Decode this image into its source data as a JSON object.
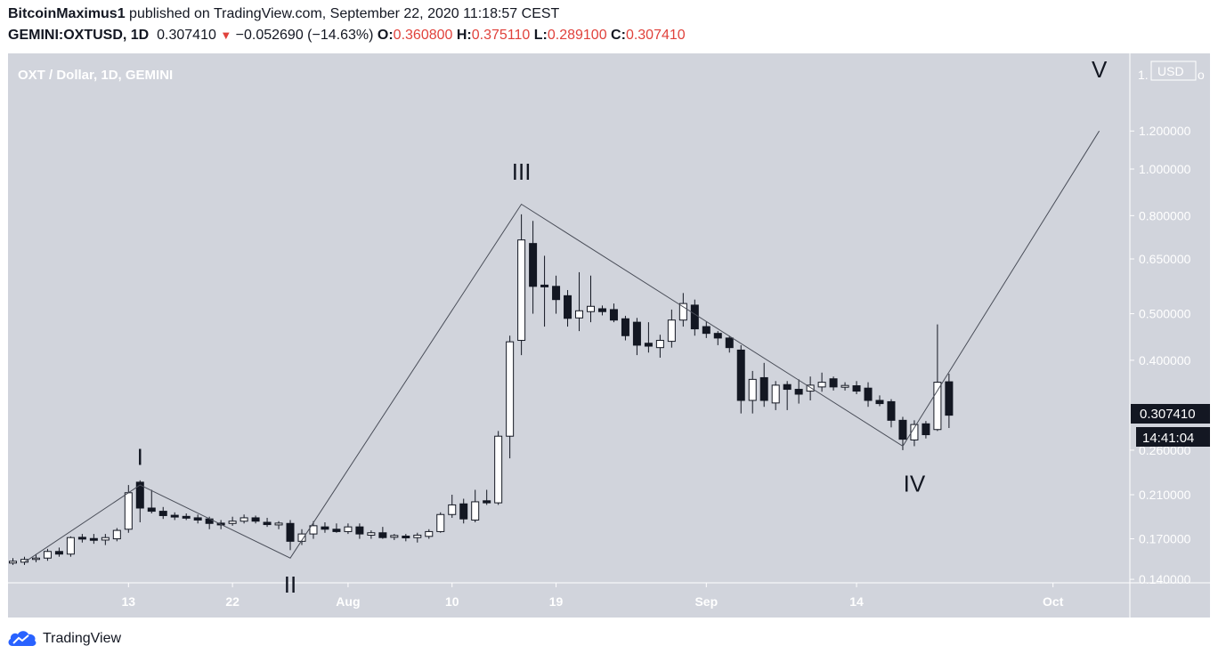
{
  "header": {
    "author": "BitcoinMaximus1",
    "published_text": "published on TradingView.com, September 22, 2020 11:18:57 CEST",
    "symbol_tf": "GEMINI:OXTUSD, 1D",
    "last": "0.307410",
    "change": "−0.052690 (−14.63%)",
    "o_label": "O:",
    "o": "0.360800",
    "h_label": "H:",
    "h": "0.375110",
    "l_label": "L:",
    "l": "0.289100",
    "c_label": "C:",
    "c": "0.307410"
  },
  "chart_title": "OXT / Dollar, 1D, GEMINI",
  "axis": {
    "currency": "USD",
    "top_partial": "1.",
    "last_price_tag": "0.307410",
    "countdown_tag": "14:41:04"
  },
  "footer": {
    "brand": "TradingView"
  },
  "colors": {
    "background": "#d1d4dc",
    "bull_fill": "#ffffff",
    "bear_fill": "#131722",
    "line": "#4a4e59",
    "price_tag": "#131722",
    "change_negative": "#e0423c"
  },
  "chart_data": {
    "type": "candlestick",
    "title": "OXT / Dollar, 1D, GEMINI",
    "y_scale": "log",
    "ylim": [
      0.135,
      1.5
    ],
    "y_ticks": [
      {
        "value": 1.2,
        "label": "1.200000"
      },
      {
        "value": 1.0,
        "label": "1.000000"
      },
      {
        "value": 0.8,
        "label": "0.800000"
      },
      {
        "value": 0.65,
        "label": "0.650000"
      },
      {
        "value": 0.5,
        "label": "0.500000"
      },
      {
        "value": 0.4,
        "label": "0.400000"
      },
      {
        "value": 0.26,
        "label": "0.260000"
      },
      {
        "value": 0.21,
        "label": "0.210000"
      },
      {
        "value": 0.17,
        "label": "0.170000"
      },
      {
        "value": 0.14,
        "label": "0.140000"
      }
    ],
    "x_ticks": [
      {
        "date": "2020-07-13",
        "label": "13"
      },
      {
        "date": "2020-07-22",
        "label": "22"
      },
      {
        "date": "2020-08-01",
        "label": "Aug"
      },
      {
        "date": "2020-08-10",
        "label": "10"
      },
      {
        "date": "2020-08-19",
        "label": "19"
      },
      {
        "date": "2020-09-01",
        "label": "Sep"
      },
      {
        "date": "2020-09-14",
        "label": "14"
      },
      {
        "date": "2020-10-01",
        "label": "Oct"
      }
    ],
    "x_range": [
      "2020-07-03",
      "2020-10-07"
    ],
    "candles": [
      {
        "date": "2020-07-03",
        "o": 0.152,
        "h": 0.155,
        "l": 0.15,
        "c": 0.152
      },
      {
        "date": "2020-07-04",
        "o": 0.152,
        "h": 0.156,
        "l": 0.15,
        "c": 0.154
      },
      {
        "date": "2020-07-05",
        "o": 0.154,
        "h": 0.158,
        "l": 0.152,
        "c": 0.155
      },
      {
        "date": "2020-07-06",
        "o": 0.155,
        "h": 0.162,
        "l": 0.153,
        "c": 0.16
      },
      {
        "date": "2020-07-07",
        "o": 0.16,
        "h": 0.163,
        "l": 0.156,
        "c": 0.158
      },
      {
        "date": "2020-07-08",
        "o": 0.158,
        "h": 0.172,
        "l": 0.156,
        "c": 0.171
      },
      {
        "date": "2020-07-09",
        "o": 0.171,
        "h": 0.174,
        "l": 0.167,
        "c": 0.17
      },
      {
        "date": "2020-07-10",
        "o": 0.17,
        "h": 0.174,
        "l": 0.166,
        "c": 0.169
      },
      {
        "date": "2020-07-11",
        "o": 0.169,
        "h": 0.174,
        "l": 0.165,
        "c": 0.171
      },
      {
        "date": "2020-07-12",
        "o": 0.17,
        "h": 0.179,
        "l": 0.168,
        "c": 0.177
      },
      {
        "date": "2020-07-13",
        "o": 0.178,
        "h": 0.22,
        "l": 0.175,
        "c": 0.212
      },
      {
        "date": "2020-07-14",
        "o": 0.223,
        "h": 0.225,
        "l": 0.184,
        "c": 0.197
      },
      {
        "date": "2020-07-15",
        "o": 0.197,
        "h": 0.215,
        "l": 0.192,
        "c": 0.194
      },
      {
        "date": "2020-07-16",
        "o": 0.194,
        "h": 0.198,
        "l": 0.187,
        "c": 0.19
      },
      {
        "date": "2020-07-17",
        "o": 0.19,
        "h": 0.193,
        "l": 0.186,
        "c": 0.189
      },
      {
        "date": "2020-07-18",
        "o": 0.189,
        "h": 0.192,
        "l": 0.186,
        "c": 0.188
      },
      {
        "date": "2020-07-19",
        "o": 0.188,
        "h": 0.191,
        "l": 0.183,
        "c": 0.186
      },
      {
        "date": "2020-07-20",
        "o": 0.187,
        "h": 0.189,
        "l": 0.178,
        "c": 0.183
      },
      {
        "date": "2020-07-21",
        "o": 0.183,
        "h": 0.186,
        "l": 0.178,
        "c": 0.182
      },
      {
        "date": "2020-07-22",
        "o": 0.183,
        "h": 0.189,
        "l": 0.181,
        "c": 0.185
      },
      {
        "date": "2020-07-23",
        "o": 0.185,
        "h": 0.191,
        "l": 0.183,
        "c": 0.188
      },
      {
        "date": "2020-07-24",
        "o": 0.188,
        "h": 0.19,
        "l": 0.183,
        "c": 0.185
      },
      {
        "date": "2020-07-25",
        "o": 0.184,
        "h": 0.188,
        "l": 0.18,
        "c": 0.182
      },
      {
        "date": "2020-07-26",
        "o": 0.182,
        "h": 0.185,
        "l": 0.178,
        "c": 0.183
      },
      {
        "date": "2020-07-27",
        "o": 0.183,
        "h": 0.186,
        "l": 0.161,
        "c": 0.168
      },
      {
        "date": "2020-07-28",
        "o": 0.168,
        "h": 0.178,
        "l": 0.165,
        "c": 0.174
      },
      {
        "date": "2020-07-29",
        "o": 0.174,
        "h": 0.185,
        "l": 0.17,
        "c": 0.181
      },
      {
        "date": "2020-07-30",
        "o": 0.18,
        "h": 0.184,
        "l": 0.175,
        "c": 0.178
      },
      {
        "date": "2020-07-31",
        "o": 0.178,
        "h": 0.183,
        "l": 0.175,
        "c": 0.176
      },
      {
        "date": "2020-08-01",
        "o": 0.176,
        "h": 0.183,
        "l": 0.174,
        "c": 0.18
      },
      {
        "date": "2020-08-02",
        "o": 0.18,
        "h": 0.183,
        "l": 0.17,
        "c": 0.174
      },
      {
        "date": "2020-08-03",
        "o": 0.173,
        "h": 0.177,
        "l": 0.17,
        "c": 0.175
      },
      {
        "date": "2020-08-04",
        "o": 0.175,
        "h": 0.18,
        "l": 0.17,
        "c": 0.171
      },
      {
        "date": "2020-08-05",
        "o": 0.172,
        "h": 0.174,
        "l": 0.169,
        "c": 0.172
      },
      {
        "date": "2020-08-06",
        "o": 0.172,
        "h": 0.174,
        "l": 0.168,
        "c": 0.171
      },
      {
        "date": "2020-08-07",
        "o": 0.171,
        "h": 0.175,
        "l": 0.167,
        "c": 0.173
      },
      {
        "date": "2020-08-08",
        "o": 0.172,
        "h": 0.178,
        "l": 0.17,
        "c": 0.176
      },
      {
        "date": "2020-08-09",
        "o": 0.176,
        "h": 0.193,
        "l": 0.175,
        "c": 0.191
      },
      {
        "date": "2020-08-10",
        "o": 0.191,
        "h": 0.21,
        "l": 0.188,
        "c": 0.2
      },
      {
        "date": "2020-08-11",
        "o": 0.201,
        "h": 0.206,
        "l": 0.183,
        "c": 0.187
      },
      {
        "date": "2020-08-12",
        "o": 0.186,
        "h": 0.215,
        "l": 0.184,
        "c": 0.203
      },
      {
        "date": "2020-08-13",
        "o": 0.204,
        "h": 0.215,
        "l": 0.2,
        "c": 0.202
      },
      {
        "date": "2020-08-14",
        "o": 0.202,
        "h": 0.285,
        "l": 0.2,
        "c": 0.278
      },
      {
        "date": "2020-08-15",
        "o": 0.278,
        "h": 0.45,
        "l": 0.25,
        "c": 0.437
      },
      {
        "date": "2020-08-16",
        "o": 0.44,
        "h": 0.805,
        "l": 0.41,
        "c": 0.712
      },
      {
        "date": "2020-08-17",
        "o": 0.7,
        "h": 0.78,
        "l": 0.5,
        "c": 0.57
      },
      {
        "date": "2020-08-18",
        "o": 0.572,
        "h": 0.66,
        "l": 0.47,
        "c": 0.57
      },
      {
        "date": "2020-08-19",
        "o": 0.57,
        "h": 0.6,
        "l": 0.5,
        "c": 0.535
      },
      {
        "date": "2020-08-20",
        "o": 0.545,
        "h": 0.56,
        "l": 0.47,
        "c": 0.489
      },
      {
        "date": "2020-08-21",
        "o": 0.49,
        "h": 0.61,
        "l": 0.46,
        "c": 0.507
      },
      {
        "date": "2020-08-22",
        "o": 0.505,
        "h": 0.6,
        "l": 0.48,
        "c": 0.518
      },
      {
        "date": "2020-08-23",
        "o": 0.512,
        "h": 0.52,
        "l": 0.496,
        "c": 0.505
      },
      {
        "date": "2020-08-24",
        "o": 0.51,
        "h": 0.525,
        "l": 0.48,
        "c": 0.485
      },
      {
        "date": "2020-08-25",
        "o": 0.488,
        "h": 0.495,
        "l": 0.44,
        "c": 0.45
      },
      {
        "date": "2020-08-26",
        "o": 0.48,
        "h": 0.49,
        "l": 0.41,
        "c": 0.43
      },
      {
        "date": "2020-08-27",
        "o": 0.434,
        "h": 0.48,
        "l": 0.415,
        "c": 0.428
      },
      {
        "date": "2020-08-28",
        "o": 0.425,
        "h": 0.452,
        "l": 0.405,
        "c": 0.44
      },
      {
        "date": "2020-08-29",
        "o": 0.438,
        "h": 0.51,
        "l": 0.425,
        "c": 0.485
      },
      {
        "date": "2020-08-30",
        "o": 0.485,
        "h": 0.552,
        "l": 0.47,
        "c": 0.525
      },
      {
        "date": "2020-08-31",
        "o": 0.521,
        "h": 0.535,
        "l": 0.45,
        "c": 0.465
      },
      {
        "date": "2020-09-01",
        "o": 0.47,
        "h": 0.482,
        "l": 0.445,
        "c": 0.455
      },
      {
        "date": "2020-09-02",
        "o": 0.455,
        "h": 0.46,
        "l": 0.43,
        "c": 0.445
      },
      {
        "date": "2020-09-03",
        "o": 0.445,
        "h": 0.45,
        "l": 0.415,
        "c": 0.425
      },
      {
        "date": "2020-09-04",
        "o": 0.42,
        "h": 0.43,
        "l": 0.31,
        "c": 0.33
      },
      {
        "date": "2020-09-05",
        "o": 0.33,
        "h": 0.38,
        "l": 0.31,
        "c": 0.365
      },
      {
        "date": "2020-09-06",
        "o": 0.368,
        "h": 0.395,
        "l": 0.32,
        "c": 0.33
      },
      {
        "date": "2020-09-07",
        "o": 0.326,
        "h": 0.362,
        "l": 0.315,
        "c": 0.355
      },
      {
        "date": "2020-09-08",
        "o": 0.356,
        "h": 0.362,
        "l": 0.315,
        "c": 0.348
      },
      {
        "date": "2020-09-09",
        "o": 0.348,
        "h": 0.365,
        "l": 0.325,
        "c": 0.34
      },
      {
        "date": "2020-09-10",
        "o": 0.345,
        "h": 0.37,
        "l": 0.33,
        "c": 0.355
      },
      {
        "date": "2020-09-11",
        "o": 0.352,
        "h": 0.377,
        "l": 0.344,
        "c": 0.36
      },
      {
        "date": "2020-09-12",
        "o": 0.366,
        "h": 0.37,
        "l": 0.346,
        "c": 0.352
      },
      {
        "date": "2020-09-13",
        "o": 0.352,
        "h": 0.36,
        "l": 0.346,
        "c": 0.354
      },
      {
        "date": "2020-09-14",
        "o": 0.354,
        "h": 0.362,
        "l": 0.34,
        "c": 0.345
      },
      {
        "date": "2020-09-15",
        "o": 0.35,
        "h": 0.36,
        "l": 0.32,
        "c": 0.33
      },
      {
        "date": "2020-09-16",
        "o": 0.33,
        "h": 0.338,
        "l": 0.321,
        "c": 0.325
      },
      {
        "date": "2020-09-17",
        "o": 0.328,
        "h": 0.332,
        "l": 0.29,
        "c": 0.3
      },
      {
        "date": "2020-09-18",
        "o": 0.3,
        "h": 0.305,
        "l": 0.26,
        "c": 0.274
      },
      {
        "date": "2020-09-19",
        "o": 0.273,
        "h": 0.3,
        "l": 0.265,
        "c": 0.294
      },
      {
        "date": "2020-09-20",
        "o": 0.295,
        "h": 0.299,
        "l": 0.275,
        "c": 0.28
      },
      {
        "date": "2020-09-21",
        "o": 0.287,
        "h": 0.475,
        "l": 0.285,
        "c": 0.36
      },
      {
        "date": "2020-09-22",
        "o": 0.3608,
        "h": 0.37511,
        "l": 0.2891,
        "c": 0.30741
      }
    ],
    "wave_path": [
      {
        "date": "2020-07-04",
        "value": 0.152
      },
      {
        "date": "2020-07-14",
        "value": 0.22
      },
      {
        "date": "2020-07-27",
        "value": 0.155
      },
      {
        "date": "2020-08-16",
        "value": 0.845
      },
      {
        "date": "2020-09-18",
        "value": 0.265
      },
      {
        "date": "2020-10-05",
        "value": 1.2
      }
    ],
    "wave_labels": [
      {
        "text": "I",
        "date": "2020-07-14",
        "value": 0.242,
        "anchor": "bottom"
      },
      {
        "text": "II",
        "date": "2020-07-27",
        "value": 0.143,
        "anchor": "top"
      },
      {
        "text": "III",
        "date": "2020-08-16",
        "value": 0.95,
        "anchor": "bottom"
      },
      {
        "text": "IV",
        "date": "2020-09-19",
        "value": 0.232,
        "anchor": "top"
      },
      {
        "text": "V",
        "date": "2020-10-05",
        "value": 1.55,
        "anchor": "bottom"
      }
    ]
  }
}
